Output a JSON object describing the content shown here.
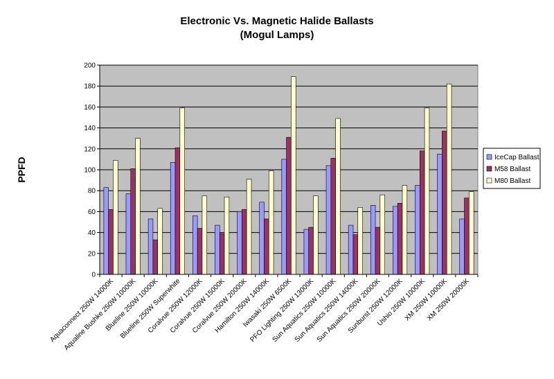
{
  "chart_data": {
    "type": "bar",
    "title": "Electronic Vs. Magnetic Halide Ballasts",
    "subtitle": "(Mogul Lamps)",
    "xlabel": "",
    "ylabel": "PPFD",
    "ylim": [
      0,
      200
    ],
    "ytick_step": 20,
    "grid": true,
    "legend_position": "right",
    "background_color": "#c0c0c0",
    "categories": [
      "Aquaconnect 250W 14000K",
      "Aqualine Bushke 250W 10000K",
      "Blueline 250W 10000K",
      "Blueline 250W Superwhite",
      "Coralvue 250W 12000K",
      "Coralvue 250W 15000K",
      "Coralvue 250W 20000K",
      "Hamilton 250W 14000K",
      "Iwasaki 250W 6500K",
      "PFO Lighting 250W 13000K",
      "Sun Aquatics 250W 10000K",
      "Sun Aquatics 250W 14000K",
      "Sun Aquatics 250W 20000K",
      "Sunburst 250W 12000K",
      "Ushio 250W 10000K",
      "XM 250W 10000K",
      "XM 250W 20000K"
    ],
    "series": [
      {
        "name": "IceCap Ballast",
        "color": "#9999ff",
        "values": [
          83,
          77,
          53,
          107,
          56,
          47,
          60,
          69,
          110,
          43,
          104,
          47,
          66,
          65,
          85,
          115,
          53
        ]
      },
      {
        "name": "M58 Ballast",
        "color": "#993366",
        "values": [
          62,
          101,
          33,
          121,
          44,
          39,
          62,
          53,
          131,
          45,
          111,
          38,
          45,
          68,
          118,
          137,
          73
        ]
      },
      {
        "name": "M80 Ballast",
        "color": "#ffffcc",
        "values": [
          109,
          130,
          63,
          159,
          75,
          74,
          91,
          99,
          189,
          75,
          149,
          64,
          76,
          85,
          159,
          182,
          79
        ]
      }
    ]
  }
}
